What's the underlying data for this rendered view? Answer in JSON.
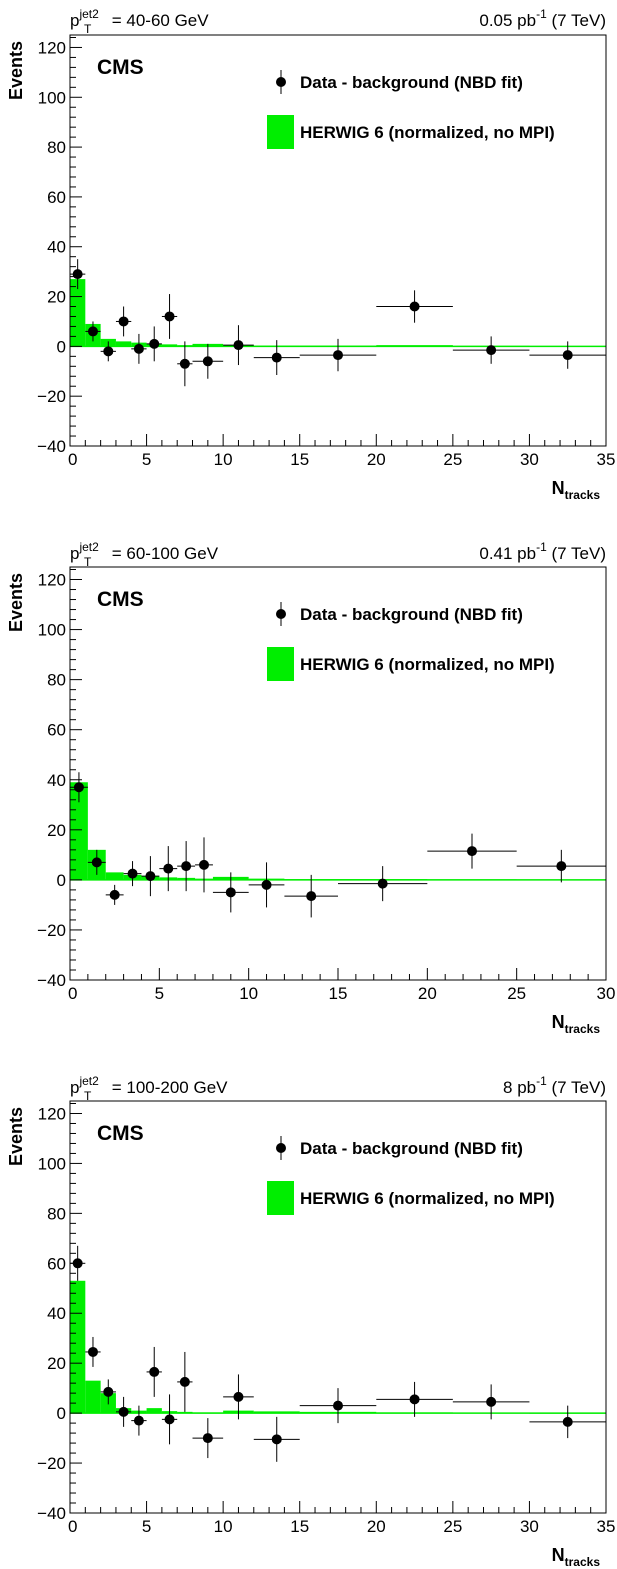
{
  "colors": {
    "mc_fill": "#00ee00",
    "axis": "#000000",
    "zero_line": "#00ee00",
    "data": "#000000"
  },
  "chart_data": [
    {
      "type": "bar",
      "label_left_prefix": "p",
      "label_left_sup": "jet2",
      "label_left_sub": "T",
      "label_left_suffix": " = 40-60 GeV",
      "label_right_prefix": "0.05 pb",
      "label_right_sup": "-1",
      "label_right_suffix": " (7 TeV)",
      "cms": "CMS",
      "ylabel": "Events",
      "xlabel_main": "N",
      "xlabel_sub": "tracks",
      "legend": [
        "Data - background (NBD fit)",
        "HERWIG 6 (normalized, no MPI)"
      ],
      "xlim": [
        0,
        35
      ],
      "ylim": [
        -40,
        125
      ],
      "xticks": [
        0,
        5,
        10,
        15,
        20,
        25,
        30,
        35
      ],
      "yticks": [
        -40,
        -20,
        0,
        20,
        40,
        60,
        80,
        100,
        120
      ],
      "mc": [
        {
          "x0": 0,
          "x1": 1,
          "y": 27
        },
        {
          "x0": 1,
          "x1": 2,
          "y": 9
        },
        {
          "x0": 2,
          "x1": 3,
          "y": 3
        },
        {
          "x0": 3,
          "x1": 4,
          "y": 2
        },
        {
          "x0": 4,
          "x1": 5,
          "y": 1.5
        },
        {
          "x0": 5,
          "x1": 6,
          "y": 1
        },
        {
          "x0": 6,
          "x1": 7,
          "y": 0.8
        },
        {
          "x0": 7,
          "x1": 8,
          "y": 0.5
        },
        {
          "x0": 8,
          "x1": 10,
          "y": 1
        },
        {
          "x0": 10,
          "x1": 12,
          "y": 0.5
        },
        {
          "x0": 12,
          "x1": 15,
          "y": 0.3
        },
        {
          "x0": 15,
          "x1": 20,
          "y": 0.3
        },
        {
          "x0": 20,
          "x1": 25,
          "y": 0.5
        },
        {
          "x0": 25,
          "x1": 30,
          "y": 0.2
        },
        {
          "x0": 30,
          "x1": 35,
          "y": 0.1
        }
      ],
      "data": [
        {
          "x": 0.5,
          "xerr": 0.5,
          "y": 29,
          "yerr": 6
        },
        {
          "x": 1.5,
          "xerr": 0.5,
          "y": 6,
          "yerr": 4
        },
        {
          "x": 2.5,
          "xerr": 0.5,
          "y": -2,
          "yerr": 4
        },
        {
          "x": 3.5,
          "xerr": 0.5,
          "y": 10,
          "yerr": 6
        },
        {
          "x": 4.5,
          "xerr": 0.5,
          "y": -1,
          "yerr": 6
        },
        {
          "x": 5.5,
          "xerr": 0.5,
          "y": 1,
          "yerr": 7
        },
        {
          "x": 6.5,
          "xerr": 0.5,
          "y": 12,
          "yerr": 9
        },
        {
          "x": 7.5,
          "xerr": 0.5,
          "y": -7,
          "yerr": 9
        },
        {
          "x": 9.0,
          "xerr": 1.0,
          "y": -6,
          "yerr": 7
        },
        {
          "x": 11.0,
          "xerr": 1.0,
          "y": 0.5,
          "yerr": 8
        },
        {
          "x": 13.5,
          "xerr": 1.5,
          "y": -4.5,
          "yerr": 7
        },
        {
          "x": 17.5,
          "xerr": 2.5,
          "y": -3.5,
          "yerr": 6.5
        },
        {
          "x": 22.5,
          "xerr": 2.5,
          "y": 16,
          "yerr": 6.5
        },
        {
          "x": 27.5,
          "xerr": 2.5,
          "y": -1.5,
          "yerr": 5.5
        },
        {
          "x": 32.5,
          "xerr": 2.5,
          "y": -3.5,
          "yerr": 5.5
        }
      ]
    },
    {
      "type": "bar",
      "label_left_prefix": "p",
      "label_left_sup": "jet2",
      "label_left_sub": "T",
      "label_left_suffix": " = 60-100 GeV",
      "label_right_prefix": "0.41 pb",
      "label_right_sup": "-1",
      "label_right_suffix": " (7 TeV)",
      "cms": "CMS",
      "ylabel": "Events",
      "xlabel_main": "N",
      "xlabel_sub": "tracks",
      "legend": [
        "Data - background (NBD fit)",
        "HERWIG 6 (normalized, no MPI)"
      ],
      "xlim": [
        0,
        30
      ],
      "ylim": [
        -40,
        125
      ],
      "xticks": [
        0,
        5,
        10,
        15,
        20,
        25,
        30
      ],
      "yticks": [
        -40,
        -20,
        0,
        20,
        40,
        60,
        80,
        100,
        120
      ],
      "mc": [
        {
          "x0": 0,
          "x1": 1,
          "y": 39
        },
        {
          "x0": 1,
          "x1": 2,
          "y": 12
        },
        {
          "x0": 2,
          "x1": 3,
          "y": 3
        },
        {
          "x0": 3,
          "x1": 4,
          "y": 2
        },
        {
          "x0": 4,
          "x1": 5,
          "y": 1.5
        },
        {
          "x0": 5,
          "x1": 6,
          "y": 1
        },
        {
          "x0": 6,
          "x1": 7,
          "y": 0.8
        },
        {
          "x0": 7,
          "x1": 8,
          "y": 0.5
        },
        {
          "x0": 8,
          "x1": 10,
          "y": 1.2
        },
        {
          "x0": 10,
          "x1": 12,
          "y": 0.5
        },
        {
          "x0": 12,
          "x1": 15,
          "y": 0.3
        },
        {
          "x0": 15,
          "x1": 20,
          "y": 0.3
        },
        {
          "x0": 20,
          "x1": 25,
          "y": 0.2
        },
        {
          "x0": 25,
          "x1": 30,
          "y": 0.1
        }
      ],
      "data": [
        {
          "x": 0.5,
          "xerr": 0.5,
          "y": 37,
          "yerr": 6
        },
        {
          "x": 1.5,
          "xerr": 0.5,
          "y": 7,
          "yerr": 5
        },
        {
          "x": 2.5,
          "xerr": 0.5,
          "y": -6,
          "yerr": 4
        },
        {
          "x": 3.5,
          "xerr": 0.5,
          "y": 2.5,
          "yerr": 5
        },
        {
          "x": 4.5,
          "xerr": 0.5,
          "y": 1.5,
          "yerr": 8
        },
        {
          "x": 5.5,
          "xerr": 0.5,
          "y": 4.5,
          "yerr": 9
        },
        {
          "x": 6.5,
          "xerr": 0.5,
          "y": 5.5,
          "yerr": 10
        },
        {
          "x": 7.5,
          "xerr": 0.5,
          "y": 6,
          "yerr": 11
        },
        {
          "x": 9.0,
          "xerr": 1.0,
          "y": -5,
          "yerr": 8
        },
        {
          "x": 11.0,
          "xerr": 1.0,
          "y": -2,
          "yerr": 9
        },
        {
          "x": 13.5,
          "xerr": 1.5,
          "y": -6.5,
          "yerr": 8.5
        },
        {
          "x": 17.5,
          "xerr": 2.5,
          "y": -1.5,
          "yerr": 7
        },
        {
          "x": 22.5,
          "xerr": 2.5,
          "y": 11.5,
          "yerr": 7
        },
        {
          "x": 27.5,
          "xerr": 2.5,
          "y": 5.5,
          "yerr": 6.5
        }
      ]
    },
    {
      "type": "bar",
      "label_left_prefix": "p",
      "label_left_sup": "jet2",
      "label_left_sub": "T",
      "label_left_suffix": " = 100-200 GeV",
      "label_right_prefix": "8 pb",
      "label_right_sup": "-1",
      "label_right_suffix": " (7 TeV)",
      "cms": "CMS",
      "ylabel": "Events",
      "xlabel_main": "N",
      "xlabel_sub": "tracks",
      "legend": [
        "Data - background (NBD fit)",
        "HERWIG 6 (normalized, no MPI)"
      ],
      "xlim": [
        0,
        35
      ],
      "ylim": [
        -40,
        125
      ],
      "xticks": [
        0,
        5,
        10,
        15,
        20,
        25,
        30,
        35
      ],
      "yticks": [
        -40,
        -20,
        0,
        20,
        40,
        60,
        80,
        100,
        120
      ],
      "mc": [
        {
          "x0": 0,
          "x1": 1,
          "y": 53
        },
        {
          "x0": 1,
          "x1": 2,
          "y": 13
        },
        {
          "x0": 2,
          "x1": 3,
          "y": 8
        },
        {
          "x0": 3,
          "x1": 4,
          "y": 2
        },
        {
          "x0": 4,
          "x1": 5,
          "y": 1
        },
        {
          "x0": 5,
          "x1": 6,
          "y": 2
        },
        {
          "x0": 6,
          "x1": 7,
          "y": 0.8
        },
        {
          "x0": 7,
          "x1": 8,
          "y": 0.5
        },
        {
          "x0": 8,
          "x1": 10,
          "y": 0.3
        },
        {
          "x0": 10,
          "x1": 12,
          "y": 1
        },
        {
          "x0": 12,
          "x1": 15,
          "y": 0.7
        },
        {
          "x0": 15,
          "x1": 20,
          "y": 0.5
        },
        {
          "x0": 20,
          "x1": 25,
          "y": 0.3
        },
        {
          "x0": 25,
          "x1": 30,
          "y": 0.2
        },
        {
          "x0": 30,
          "x1": 35,
          "y": 0.1
        }
      ],
      "data": [
        {
          "x": 0.5,
          "xerr": 0.5,
          "y": 60,
          "yerr": 7
        },
        {
          "x": 1.5,
          "xerr": 0.5,
          "y": 24.5,
          "yerr": 6
        },
        {
          "x": 2.5,
          "xerr": 0.5,
          "y": 8.5,
          "yerr": 5
        },
        {
          "x": 3.5,
          "xerr": 0.5,
          "y": 0.5,
          "yerr": 6
        },
        {
          "x": 4.5,
          "xerr": 0.5,
          "y": -3,
          "yerr": 6
        },
        {
          "x": 5.5,
          "xerr": 0.5,
          "y": 16.5,
          "yerr": 10
        },
        {
          "x": 6.5,
          "xerr": 0.5,
          "y": -2.5,
          "yerr": 10
        },
        {
          "x": 7.5,
          "xerr": 0.5,
          "y": 12.5,
          "yerr": 12
        },
        {
          "x": 9.0,
          "xerr": 1.0,
          "y": -10,
          "yerr": 8
        },
        {
          "x": 11.0,
          "xerr": 1.0,
          "y": 6.5,
          "yerr": 9
        },
        {
          "x": 13.5,
          "xerr": 1.5,
          "y": -10.5,
          "yerr": 9
        },
        {
          "x": 17.5,
          "xerr": 2.5,
          "y": 3,
          "yerr": 7
        },
        {
          "x": 22.5,
          "xerr": 2.5,
          "y": 5.5,
          "yerr": 7
        },
        {
          "x": 27.5,
          "xerr": 2.5,
          "y": 4.5,
          "yerr": 7
        },
        {
          "x": 32.5,
          "xerr": 2.5,
          "y": -3.5,
          "yerr": 6.5
        }
      ]
    }
  ]
}
